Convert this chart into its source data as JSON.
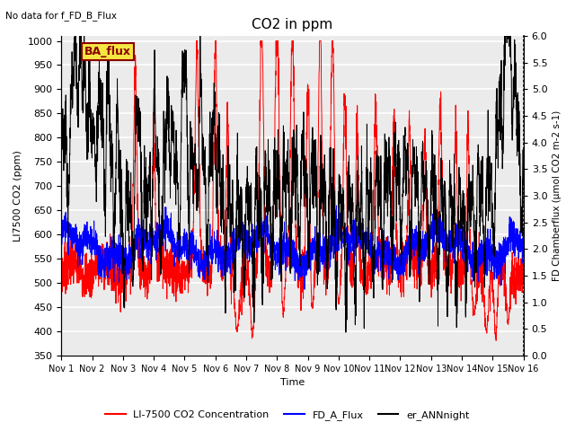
{
  "title": "CO2 in ppm",
  "top_left_text": "No data for f_FD_B_Flux",
  "box_label": "BA_flux",
  "xlabel": "Time",
  "ylabel_left": "LI7500 CO2 (ppm)",
  "ylabel_right": "FD Chamberflux (μmol CO2 m-2 s-1)",
  "ylim_left": [
    350,
    1010
  ],
  "ylim_right": [
    0.0,
    6.0
  ],
  "yticks_left": [
    350,
    400,
    450,
    500,
    550,
    600,
    650,
    700,
    750,
    800,
    850,
    900,
    950,
    1000
  ],
  "yticks_right": [
    0.0,
    0.5,
    1.0,
    1.5,
    2.0,
    2.5,
    3.0,
    3.5,
    4.0,
    4.5,
    5.0,
    5.5,
    6.0
  ],
  "xtick_labels": [
    "Nov 1",
    "Nov 2",
    "Nov 3",
    "Nov 4",
    "Nov 5",
    "Nov 6",
    "Nov 7",
    "Nov 8",
    "Nov 9",
    "Nov 10",
    "Nov 11",
    "Nov 12",
    "Nov 13",
    "Nov 14",
    "Nov 15",
    "Nov 16"
  ],
  "legend_entries": [
    {
      "label": "LI-7500 CO2 Concentration",
      "color": "#ff0000"
    },
    {
      "label": "FD_A_Flux",
      "color": "#0000ff"
    },
    {
      "label": "er_ANNnight",
      "color": "#000000"
    }
  ],
  "background_color": "#ebebeb",
  "grid_color": "#ffffff",
  "n_points": 3000,
  "figsize": [
    6.4,
    4.8
  ],
  "dpi": 100
}
